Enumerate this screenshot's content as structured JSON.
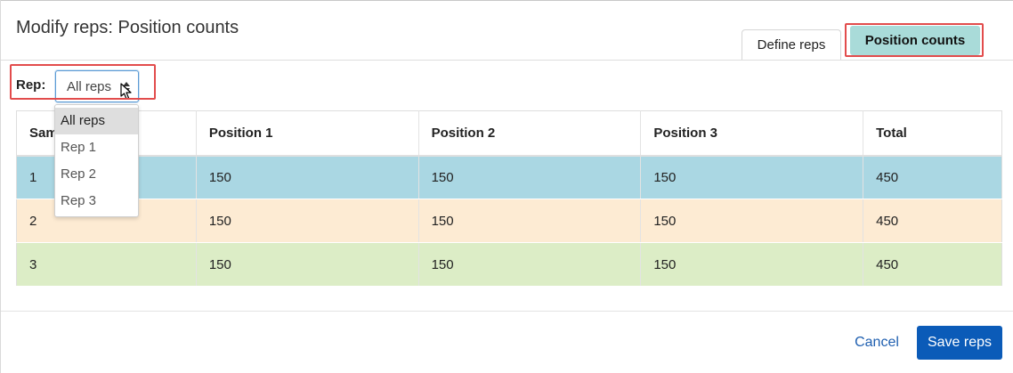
{
  "dialog": {
    "title": "Modify reps: Position counts"
  },
  "tabs": [
    {
      "label": "Define reps",
      "active": false
    },
    {
      "label": "Position counts",
      "active": true
    }
  ],
  "rep_filter": {
    "label": "Rep:",
    "selected": "All reps",
    "options": [
      "All reps",
      "Rep 1",
      "Rep 2",
      "Rep 3"
    ]
  },
  "table": {
    "headers": [
      "Sample",
      "Position 1",
      "Position 2",
      "Position 3",
      "Total"
    ],
    "rows": [
      [
        "1",
        "150",
        "150",
        "150",
        "450"
      ],
      [
        "2",
        "150",
        "150",
        "150",
        "450"
      ],
      [
        "3",
        "150",
        "150",
        "150",
        "450"
      ]
    ]
  },
  "footer": {
    "cancel_label": "Cancel",
    "save_label": "Save reps"
  },
  "colors": {
    "row_1": "#aad7e3",
    "row_2": "#fdebd3",
    "row_3": "#dcedc6",
    "active_tab": "#a9dbd9",
    "primary_button": "#0b5bb8",
    "highlight_box": "#e24c4c"
  },
  "icons": {
    "select_arrows": "sort-arrows-icon",
    "cursor": "mouse-pointer-icon"
  }
}
